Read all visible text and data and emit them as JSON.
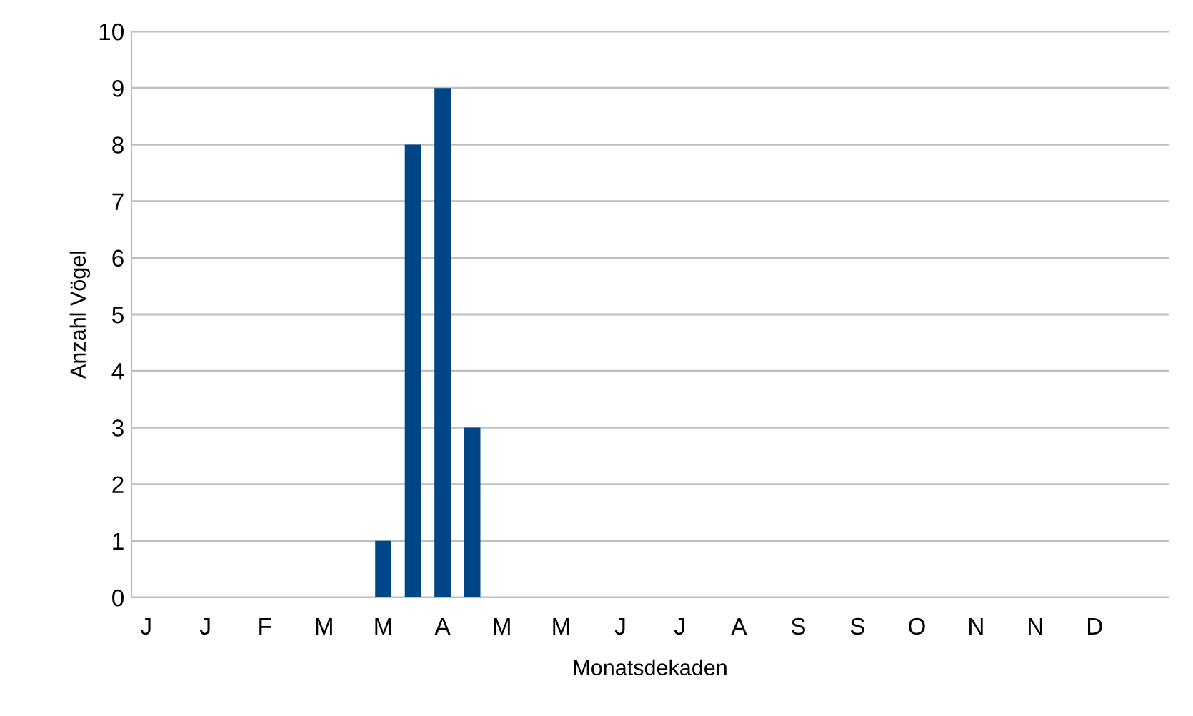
{
  "chart_data": {
    "type": "bar",
    "xlabel": "Monatsdekaden",
    "ylabel": "Anzahl Vögel",
    "categories": [
      "J",
      null,
      "J",
      null,
      "F",
      null,
      "M",
      null,
      "M",
      null,
      "A",
      null,
      "M",
      null,
      "M",
      null,
      "J",
      null,
      "J",
      null,
      "A",
      null,
      "S",
      null,
      "S",
      null,
      "O",
      null,
      "N",
      null,
      "N",
      null,
      "D",
      null,
      null
    ],
    "values": [
      0,
      0,
      0,
      0,
      0,
      0,
      0,
      0,
      1,
      8,
      9,
      3,
      0,
      0,
      0,
      0,
      0,
      0,
      0,
      0,
      0,
      0,
      0,
      0,
      0,
      0,
      0,
      0,
      0,
      0,
      0,
      0,
      0,
      0,
      0
    ],
    "color": "#004586",
    "ylim": [
      0,
      10
    ],
    "yticks": [
      0,
      1,
      2,
      3,
      4,
      5,
      6,
      7,
      8,
      9,
      10
    ],
    "grid": "y",
    "legend": false
  }
}
